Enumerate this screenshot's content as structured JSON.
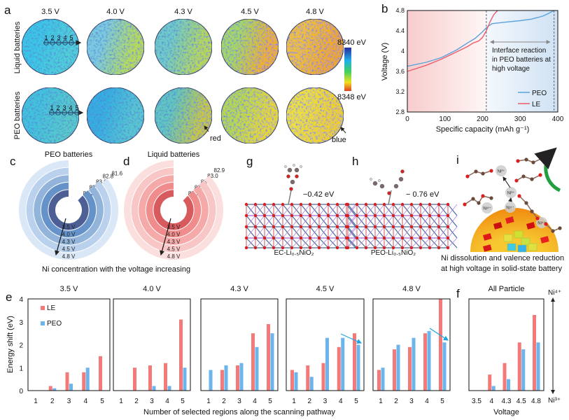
{
  "panel_labels": {
    "a": "a",
    "b": "b",
    "c": "c",
    "d": "d",
    "e": "e",
    "f": "f",
    "g": "g",
    "h": "h",
    "i": "i"
  },
  "panel_a": {
    "voltages": [
      "3.5 V",
      "4.0 V",
      "4.3 V",
      "4.5 V",
      "4.8 V"
    ],
    "row_labels": [
      "Liquid batteries",
      "PEO batteries"
    ],
    "scan_numbers": [
      "1",
      "2",
      "3",
      "4",
      "5"
    ],
    "colorbar": {
      "top": "8340 eV",
      "bottom": "8348 eV",
      "colors": [
        "#2a2aa0",
        "#20b0e8",
        "#40d060",
        "#f0e020",
        "#e04020"
      ]
    },
    "annotations": {
      "red": "red",
      "blue": "blue"
    }
  },
  "panel_cd_caption": "Ni concentration with the voltage increasing",
  "panel_g": {
    "energy": "−0.42 eV",
    "label": "EC-Li₀.₅NiO₂"
  },
  "panel_h": {
    "energy": "− 0.76 eV",
    "label": "PEO-Li₀.₅NiO₂"
  },
  "panel_i": {
    "ions": [
      "Ni²⁺",
      "Ni³⁺",
      "Ni⁴⁺",
      "Ni⁴⁺",
      "Ni⁴⁺"
    ],
    "caption_lines": [
      "Ni dissolution and valence reduction",
      "at high voltage in solid-state battery"
    ]
  },
  "chart_data": [
    {
      "panel": "b",
      "type": "line",
      "xlabel": "Specific capacity (mAh g⁻¹)",
      "ylabel": "Voltage (V)",
      "xlim": [
        0,
        400
      ],
      "ylim": [
        2.8,
        4.8
      ],
      "xticks": [
        "0",
        "100",
        "200",
        "300",
        "400"
      ],
      "yticks": [
        "2.8",
        "3.2",
        "3.6",
        "4",
        "4.4",
        "4.8"
      ],
      "annotation": [
        "Interface   reaction",
        "in PEO batteries at",
        "high voltage"
      ],
      "annotation_range": [
        210,
        390
      ],
      "series": [
        {
          "name": "PEO",
          "color": "#5ba3dc",
          "x": [
            0,
            50,
            90,
            130,
            160,
            180,
            200,
            210,
            225,
            260,
            300,
            330,
            360,
            375,
            390
          ],
          "y": [
            3.7,
            3.78,
            3.87,
            4.02,
            4.16,
            4.25,
            4.38,
            4.46,
            4.54,
            4.57,
            4.6,
            4.63,
            4.69,
            4.74,
            4.8
          ]
        },
        {
          "name": "LE",
          "color": "#ee5c6c",
          "x": [
            0,
            50,
            90,
            130,
            160,
            175,
            190,
            200,
            210,
            220,
            230,
            240
          ],
          "y": [
            3.6,
            3.72,
            3.84,
            3.98,
            4.09,
            4.16,
            4.2,
            4.27,
            4.4,
            4.58,
            4.72,
            4.8
          ]
        }
      ],
      "legend": "bottom-right",
      "grid": false
    },
    {
      "panel": "c",
      "type": "radial-bar",
      "title": "PEO batteries",
      "categories": [
        "3.5 V",
        "4.0 V",
        "4.3 V",
        "4.5 V",
        "4.8 V"
      ],
      "values": [
        83.3,
        83.3,
        83.0,
        82.8,
        81.6
      ],
      "value_labels": [
        "83.3",
        "83.3",
        "83.0",
        "82.8",
        "81.6"
      ],
      "colors": [
        "#4e5f96",
        "#6592c8",
        "#93b4da",
        "#b9d1ec",
        "#d9e7f6"
      ]
    },
    {
      "panel": "d",
      "type": "radial-bar",
      "title": "Liquid batteries",
      "categories": [
        "3.5 V",
        "4.0 V",
        "4.3 V",
        "4.5 V",
        "4.8 V"
      ],
      "values": [
        83.1,
        83.1,
        83.1,
        83.0,
        82.9
      ],
      "value_labels": [
        "83.1",
        "83.1",
        "83.1",
        "83.0",
        "82.9"
      ],
      "colors": [
        "#d75a5e",
        "#f18c8c",
        "#f5a9a9",
        "#f9c6c6",
        "#fbdede"
      ]
    },
    {
      "panel": "e",
      "type": "bar",
      "ylabel": "Energy shift (eV)",
      "xlabel": "Number of selected regions along the scanning pathway",
      "ylim": [
        0,
        4
      ],
      "yticks": [
        "0",
        "1",
        "2",
        "3",
        "4"
      ],
      "categories": [
        "1",
        "2",
        "3",
        "4",
        "5"
      ],
      "legend": {
        "position": "top-left",
        "items": [
          {
            "name": "LE",
            "color": "#f47a7a"
          },
          {
            "name": "PEO",
            "color": "#6cb4ec"
          }
        ]
      },
      "subplots": [
        {
          "title": "3.5 V",
          "series": [
            {
              "name": "LE",
              "values": [
                0,
                0.2,
                0.8,
                0.8,
                1.5
              ]
            },
            {
              "name": "PEO",
              "values": [
                0,
                0.1,
                0.3,
                1.0,
                0
              ]
            }
          ]
        },
        {
          "title": "4.0 V",
          "series": [
            {
              "name": "LE",
              "values": [
                0,
                1.0,
                1.1,
                1.2,
                3.1
              ]
            },
            {
              "name": "PEO",
              "values": [
                0,
                0,
                0.2,
                0.2,
                1.0
              ]
            }
          ]
        },
        {
          "title": "4.3 V",
          "series": [
            {
              "name": "LE",
              "values": [
                0,
                0.9,
                1.1,
                2.5,
                2.9
              ]
            },
            {
              "name": "PEO",
              "values": [
                0.9,
                1.1,
                1.2,
                1.9,
                2.5
              ]
            }
          ]
        },
        {
          "title": "4.5 V",
          "series": [
            {
              "name": "LE",
              "values": [
                0.9,
                1.1,
                1.2,
                1.9,
                2.5
              ]
            },
            {
              "name": "PEO",
              "values": [
                0.8,
                0.6,
                2.3,
                2.3,
                2.0
              ]
            }
          ]
        },
        {
          "title": "4.8 V",
          "series": [
            {
              "name": "LE",
              "values": [
                0.9,
                1.8,
                1.9,
                2.5,
                4.0
              ]
            },
            {
              "name": "PEO",
              "values": [
                1.0,
                2.0,
                2.3,
                2.6,
                2.1
              ]
            }
          ]
        }
      ]
    },
    {
      "panel": "f",
      "type": "bar",
      "title": "All Particle",
      "xlabel": "Voltage",
      "categories": [
        "3.5",
        "4",
        "4.3",
        "4.5",
        "4.8"
      ],
      "ylim": [
        0,
        4
      ],
      "right_axis": {
        "top": "Ni⁴⁺",
        "bottom": "Ni³⁺"
      },
      "series": [
        {
          "name": "LE",
          "values": [
            0,
            0.7,
            1.2,
            2.1,
            3.3
          ]
        },
        {
          "name": "PEO",
          "values": [
            0,
            0.2,
            0.5,
            1.8,
            2.1
          ]
        }
      ]
    }
  ]
}
